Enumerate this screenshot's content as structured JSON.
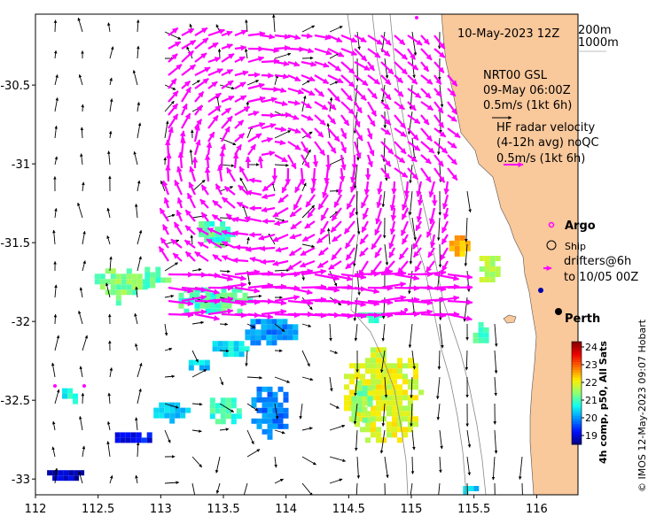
{
  "map": {
    "lon_range": [
      112,
      116.33
    ],
    "lat_range": [
      -33.1,
      -30.05
    ],
    "x_ticks": [
      "112",
      "112.5",
      "113",
      "113.5",
      "114",
      "114.5",
      "115",
      "115.5",
      "116"
    ],
    "y_ticks": [
      "-30.5",
      "-31",
      "-31.5",
      "-32",
      "-32.5",
      "-33"
    ],
    "y_tick_values": [
      -30.5,
      -31,
      -31.5,
      -32,
      -32.5,
      -33
    ],
    "x_tick_values": [
      112,
      112.5,
      113,
      113.5,
      114,
      114.5,
      115,
      115.5,
      116
    ],
    "land_color": "#f9c89b",
    "ocean_color": "#ffffff",
    "current_vector_color": "#000000",
    "radar_vector_color": "#ff00ff"
  },
  "labels": {
    "date": "10-May-2023 12Z",
    "contour_200": "200m",
    "contour_1000": "1000m",
    "nrt_title": "NRT00 GSL",
    "nrt_time": "09-May 06:00Z",
    "nrt_scale": "0.5m/s (1kt 6h)",
    "hf_title": "HF radar velocity",
    "hf_avg": "(4-12h avg) noQC",
    "hf_scale": "0.5m/s (1kt 6h)",
    "argo": "Argo",
    "ship": "Ship",
    "drifters_1": "drifters@6h",
    "drifters_2": "to 10/05 00Z",
    "perth": "Perth",
    "credit": "© IMOS 12-May-2023 09:07 Hobart"
  },
  "colorbar": {
    "ticks": [
      "24",
      "23",
      "22",
      "21",
      "20",
      "19"
    ],
    "title": "4h comp, p50, All Sats",
    "min": 18.5,
    "max": 24.3,
    "colors": [
      "#00007f",
      "#0010ff",
      "#0090ff",
      "#10ffee",
      "#90ff70",
      "#ffee00",
      "#ff7000",
      "#ee0000",
      "#7f0000"
    ]
  },
  "sst_patches": [
    {
      "lon": 114.75,
      "lat": -32.45,
      "rx": 0.33,
      "ry": 0.32,
      "temp": 21.9
    },
    {
      "lon": 114.58,
      "lat": -32.5,
      "rx": 0.1,
      "ry": 0.16,
      "temp": 21.3
    },
    {
      "lon": 115.35,
      "lat": -31.5,
      "rx": 0.09,
      "ry": 0.08,
      "temp": 22.4
    },
    {
      "lon": 115.6,
      "lat": -31.65,
      "rx": 0.1,
      "ry": 0.1,
      "temp": 21.6
    },
    {
      "lon": 115.55,
      "lat": -32.05,
      "rx": 0.1,
      "ry": 0.08,
      "temp": 21.1
    },
    {
      "lon": 113.85,
      "lat": -32.05,
      "rx": 0.22,
      "ry": 0.1,
      "temp": 20.0
    },
    {
      "lon": 113.55,
      "lat": -32.15,
      "rx": 0.18,
      "ry": 0.06,
      "temp": 20.6
    },
    {
      "lon": 113.4,
      "lat": -31.85,
      "rx": 0.3,
      "ry": 0.1,
      "temp": 21.0
    },
    {
      "lon": 112.65,
      "lat": -31.75,
      "rx": 0.22,
      "ry": 0.12,
      "temp": 21.3
    },
    {
      "lon": 112.95,
      "lat": -31.7,
      "rx": 0.12,
      "ry": 0.08,
      "temp": 21.1
    },
    {
      "lon": 113.42,
      "lat": -31.42,
      "rx": 0.16,
      "ry": 0.09,
      "temp": 21.0
    },
    {
      "lon": 113.85,
      "lat": -32.55,
      "rx": 0.17,
      "ry": 0.17,
      "temp": 19.9
    },
    {
      "lon": 113.5,
      "lat": -32.55,
      "rx": 0.15,
      "ry": 0.1,
      "temp": 20.9
    },
    {
      "lon": 113.05,
      "lat": -32.55,
      "rx": 0.15,
      "ry": 0.07,
      "temp": 20.2
    },
    {
      "lon": 112.75,
      "lat": -32.72,
      "rx": 0.2,
      "ry": 0.05,
      "temp": 19.2
    },
    {
      "lon": 112.25,
      "lat": -32.45,
      "rx": 0.08,
      "ry": 0.06,
      "temp": 20.6
    },
    {
      "lon": 112.2,
      "lat": -32.95,
      "rx": 0.15,
      "ry": 0.04,
      "temp": 18.8
    },
    {
      "lon": 113.3,
      "lat": -32.25,
      "rx": 0.12,
      "ry": 0.04,
      "temp": 20.4
    },
    {
      "lon": 114.65,
      "lat": -31.95,
      "rx": 0.12,
      "ry": 0.04,
      "temp": 21.0
    },
    {
      "lon": 115.45,
      "lat": -33.05,
      "rx": 0.08,
      "ry": 0.04,
      "temp": 20.2
    }
  ]
}
